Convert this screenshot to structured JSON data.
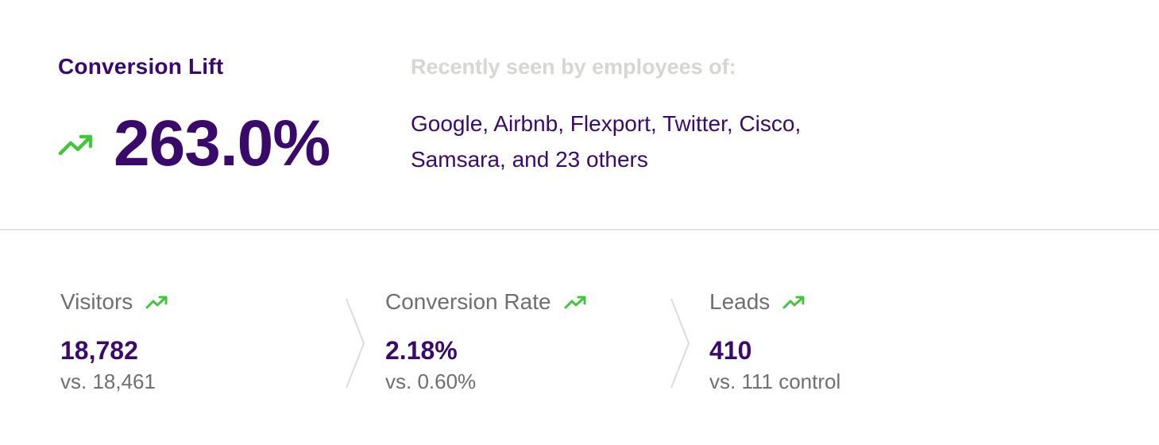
{
  "headline": {
    "label": "Conversion Lift",
    "value": "263.0%",
    "trend_icon": "trending-up-icon",
    "trend_color": "#45c43f"
  },
  "recently_seen": {
    "title": "Recently seen by employees of:",
    "companies_line1": "Google, Airbnb, Flexport, Twitter, Cisco,",
    "companies_line2": "Samsara, and 23 others"
  },
  "metrics": [
    {
      "label": "Visitors",
      "value": "18,782",
      "compare": "vs. 18,461",
      "trend_icon": "trending-up-icon"
    },
    {
      "label": "Conversion Rate",
      "value": "2.18%",
      "compare": "vs. 0.60%",
      "trend_icon": "trending-up-icon"
    },
    {
      "label": "Leads",
      "value": "410",
      "compare": "vs. 111 control",
      "trend_icon": "trending-up-icon"
    }
  ],
  "colors": {
    "primary": "#3a0a6b",
    "muted": "#6f6f6f",
    "faint": "#d6d6d2",
    "positive": "#45c43f",
    "divider": "#e3e3e3"
  }
}
